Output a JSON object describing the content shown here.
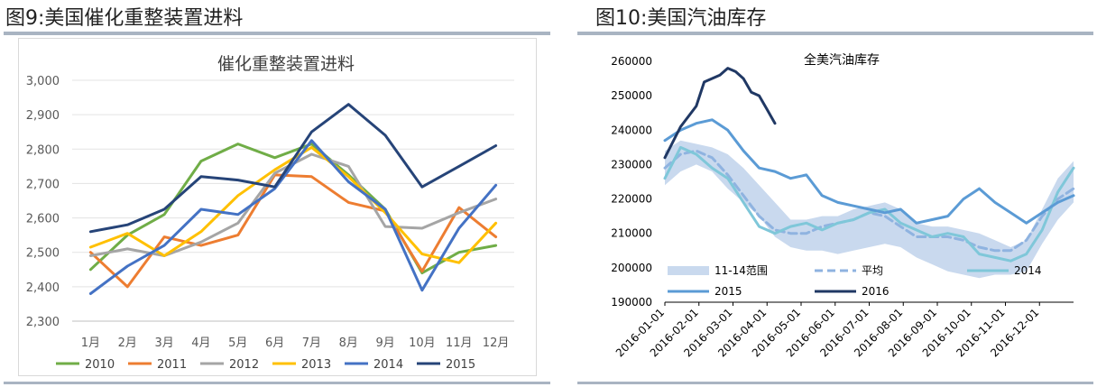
{
  "left": {
    "panel_title": "图9:美国催化重整装置进料",
    "chart_data": {
      "type": "line",
      "title": "催化重整装置进料",
      "categories": [
        "1月",
        "2月",
        "3月",
        "4月",
        "5月",
        "6月",
        "7月",
        "8月",
        "9月",
        "10月",
        "11月",
        "12月"
      ],
      "yticks": [
        "2,300",
        "2,400",
        "2,500",
        "2,600",
        "2,700",
        "2,800",
        "2,900",
        "3,000"
      ],
      "ylim": [
        2300,
        3000
      ],
      "grid": true,
      "legend_position": "bottom",
      "series": [
        {
          "name": "2010",
          "color": "#70ad47",
          "values": [
            2450,
            2550,
            2610,
            2765,
            2815,
            2775,
            2815,
            2725,
            2625,
            2440,
            2500,
            2520
          ]
        },
        {
          "name": "2011",
          "color": "#ed7d31",
          "values": [
            2500,
            2400,
            2545,
            2520,
            2550,
            2725,
            2720,
            2645,
            2620,
            2445,
            2630,
            2545
          ]
        },
        {
          "name": "2012",
          "color": "#a5a5a5",
          "values": [
            2490,
            2510,
            2490,
            2530,
            2585,
            2730,
            2785,
            2750,
            2575,
            2570,
            2615,
            2655
          ]
        },
        {
          "name": "2013",
          "color": "#ffc000",
          "values": [
            2515,
            2555,
            2490,
            2560,
            2665,
            2740,
            2805,
            2720,
            2615,
            2495,
            2470,
            2585
          ]
        },
        {
          "name": "2014",
          "color": "#4472c4",
          "values": [
            2380,
            2460,
            2520,
            2625,
            2610,
            2685,
            2825,
            2705,
            2625,
            2390,
            2570,
            2695
          ]
        },
        {
          "name": "2015",
          "color": "#264478",
          "values": [
            2560,
            2580,
            2625,
            2720,
            2710,
            2690,
            2850,
            2930,
            2840,
            2690,
            2750,
            2810
          ]
        }
      ]
    }
  },
  "right": {
    "panel_title": "图10:美国汽油库存",
    "chart_data": {
      "type": "line",
      "title": "全美汽油库存",
      "x_ticks": [
        "2016-01-01",
        "2016-02-01",
        "2016-03-01",
        "2016-04-01",
        "2016-05-01",
        "2016-06-01",
        "2016-07-01",
        "2016-08-01",
        "2016-09-01",
        "2016-10-01",
        "2016-11-01",
        "2016-12-01"
      ],
      "yticks": [
        "190000",
        "200000",
        "210000",
        "220000",
        "230000",
        "240000",
        "250000",
        "260000"
      ],
      "ylim": [
        190000,
        260000
      ],
      "xlim_weeks": [
        0,
        52
      ],
      "grid": false,
      "legend_position": "bottom",
      "band": {
        "name": "11-14范围",
        "color": "#c9d9ee",
        "x": [
          0,
          2,
          4,
          6,
          8,
          10,
          12,
          14,
          16,
          18,
          20,
          22,
          24,
          26,
          28,
          30,
          32,
          34,
          36,
          38,
          40,
          42,
          44,
          46,
          48,
          50,
          52
        ],
        "upper": [
          234000,
          237000,
          236000,
          235000,
          233000,
          229000,
          224000,
          219000,
          214000,
          214000,
          215000,
          215000,
          217000,
          218000,
          219000,
          217000,
          213000,
          212000,
          212000,
          211000,
          210000,
          208000,
          206000,
          208000,
          217000,
          226000,
          231000
        ],
        "lower": [
          224000,
          228000,
          230000,
          228000,
          223000,
          219000,
          215000,
          209000,
          206000,
          205000,
          205000,
          204000,
          205000,
          206000,
          207000,
          206000,
          203000,
          201000,
          199000,
          198000,
          197000,
          198000,
          198000,
          199000,
          207000,
          214000,
          219000
        ]
      },
      "series": [
        {
          "name": "平均",
          "color": "#8fb3e0",
          "dash": true,
          "x": [
            0,
            2,
            4,
            6,
            8,
            10,
            12,
            14,
            16,
            18,
            20,
            22,
            24,
            26,
            28,
            30,
            32,
            34,
            36,
            38,
            40,
            42,
            44,
            46,
            48,
            50,
            52
          ],
          "values": [
            229000,
            233000,
            234000,
            232000,
            227000,
            221000,
            215000,
            211000,
            210000,
            210000,
            212000,
            213000,
            214000,
            216000,
            215000,
            212000,
            209000,
            209000,
            209000,
            208000,
            206000,
            205000,
            205000,
            208000,
            215000,
            220000,
            223000
          ]
        },
        {
          "name": "2014",
          "color": "#7fc7d9",
          "dash": false,
          "x": [
            0,
            2,
            4,
            6,
            8,
            10,
            12,
            14,
            16,
            18,
            20,
            22,
            24,
            26,
            28,
            30,
            32,
            34,
            36,
            38,
            40,
            42,
            44,
            46,
            48,
            50,
            52
          ],
          "values": [
            226000,
            235000,
            233000,
            229000,
            226000,
            219000,
            212000,
            210000,
            212000,
            213000,
            211000,
            213000,
            214000,
            216000,
            217000,
            213000,
            211000,
            209000,
            210000,
            209000,
            204000,
            203000,
            202000,
            204000,
            211000,
            222000,
            229000
          ]
        },
        {
          "name": "2015",
          "color": "#5b9bd5",
          "dash": false,
          "x": [
            0,
            2,
            4,
            6,
            8,
            10,
            12,
            14,
            16,
            18,
            20,
            22,
            24,
            26,
            28,
            30,
            32,
            34,
            36,
            38,
            40,
            42,
            44,
            46,
            48,
            50,
            52
          ],
          "values": [
            237000,
            240000,
            242000,
            243000,
            240000,
            234000,
            229000,
            228000,
            226000,
            227000,
            221000,
            219000,
            218000,
            217000,
            216000,
            217000,
            213000,
            214000,
            215000,
            220000,
            223000,
            219000,
            216000,
            213000,
            216000,
            219000,
            221000
          ]
        },
        {
          "name": "2016",
          "color": "#203864",
          "dash": false,
          "x": [
            0,
            2,
            4,
            5,
            7,
            8,
            9,
            10,
            11,
            12,
            13,
            14
          ],
          "values": [
            232000,
            241000,
            247000,
            254000,
            256000,
            258000,
            257000,
            255000,
            251000,
            250000,
            246000,
            242000
          ]
        }
      ]
    }
  }
}
